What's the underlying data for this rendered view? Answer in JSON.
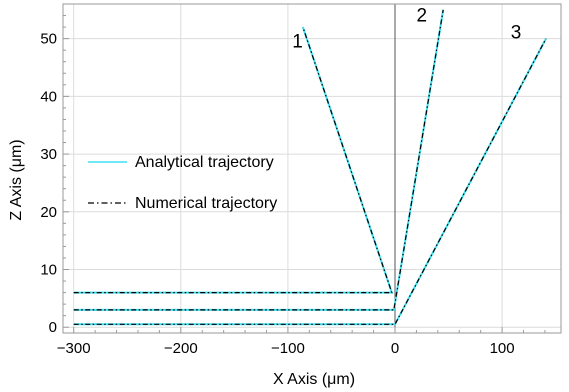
{
  "chart_data": {
    "type": "line",
    "xlabel": "X Axis (μm)",
    "ylabel": "Z Axis (μm)",
    "xlim": [
      -310,
      155
    ],
    "ylim": [
      -1,
      56
    ],
    "xticks": [
      -300,
      -200,
      -100,
      0,
      100
    ],
    "xtick_labels": [
      "−300",
      "−200",
      "−100",
      "0",
      "100"
    ],
    "yticks": [
      0,
      10,
      20,
      30,
      40,
      50
    ],
    "ytick_labels": [
      "0",
      "10",
      "20",
      "30",
      "40",
      "50"
    ],
    "grid": true,
    "legend_position": "center-left",
    "colors": {
      "analytical": "#3fe0ef",
      "numerical": "#000000",
      "frame": "#9a9a9a",
      "grid": "#dcdcdc",
      "vline": "#555555"
    },
    "series": [
      {
        "name": "Analytical trajectory",
        "style": "solid"
      },
      {
        "name": "Numerical trajectory",
        "style": "dash-dot"
      }
    ],
    "trajectories": [
      {
        "label": "1",
        "x": [
          -300,
          -3,
          -86
        ],
        "y": [
          6,
          6,
          52
        ]
      },
      {
        "label": "2",
        "x": [
          -300,
          -1,
          45
        ],
        "y": [
          3,
          3,
          55
        ]
      },
      {
        "label": "3",
        "x": [
          -300,
          0,
          141
        ],
        "y": [
          0.5,
          0.5,
          50
        ]
      }
    ],
    "trajectory_labels": [
      {
        "text": "1",
        "x": -91,
        "y": 48.5
      },
      {
        "text": "2",
        "x": 25,
        "y": 53
      },
      {
        "text": "3",
        "x": 113,
        "y": 50
      }
    ],
    "vertical_line_x": 0
  }
}
